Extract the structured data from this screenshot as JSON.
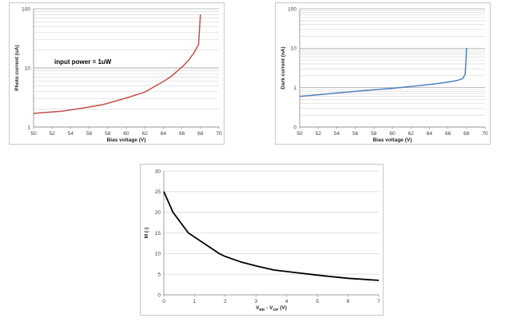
{
  "chart_data": [
    {
      "type": "line",
      "title": "",
      "xlabel": "Bias voltage (V)",
      "ylabel": "Photo current (uA)",
      "xlim": [
        50,
        70
      ],
      "ylim": [
        1,
        100
      ],
      "y_scale": "log",
      "x_ticks": [
        50,
        52,
        54,
        56,
        58,
        60,
        62,
        64,
        66,
        68,
        70
      ],
      "y_ticks": [
        1,
        10,
        100
      ],
      "grid": "y-minor",
      "annotation": "input power = 1uW",
      "series": [
        {
          "color": "#c0504d",
          "x": [
            50,
            51,
            53,
            55,
            57.5,
            60,
            62,
            63,
            64,
            64.8,
            65.5,
            66.2,
            66.8,
            67.3,
            67.8,
            68.0
          ],
          "y": [
            1.7,
            1.75,
            1.85,
            2.05,
            2.4,
            3.1,
            3.9,
            4.8,
            5.9,
            7.1,
            8.8,
            11,
            14,
            18,
            25,
            80
          ]
        }
      ]
    },
    {
      "type": "line",
      "title": "",
      "xlabel": "Bias voltage (V)",
      "ylabel": "Dark current (nA)",
      "xlim": [
        50,
        70
      ],
      "ylim": [
        0,
        100
      ],
      "y_scale": "log",
      "x_ticks": [
        50,
        52,
        54,
        56,
        58,
        60,
        62,
        64,
        66,
        68,
        70
      ],
      "y_ticks": [
        0,
        1,
        10,
        100
      ],
      "grid": "y-minor",
      "series": [
        {
          "color": "#4f81bd",
          "x": [
            50,
            52,
            54,
            56,
            58,
            60,
            62,
            64,
            65,
            66,
            67,
            67.6,
            67.85,
            67.95,
            68.0
          ],
          "y": [
            0.6,
            0.66,
            0.73,
            0.8,
            0.88,
            0.96,
            1.07,
            1.2,
            1.28,
            1.38,
            1.52,
            1.7,
            2.2,
            5,
            10
          ]
        }
      ]
    },
    {
      "type": "line",
      "title": "",
      "xlabel_main": "V",
      "xlabel_sub1": "BR",
      "xlabel_mid": " - V",
      "xlabel_sub2": "OP",
      "xlabel_unit": " (V)",
      "ylabel": "M (-)",
      "xlim": [
        0,
        7
      ],
      "ylim": [
        0,
        30
      ],
      "x_ticks": [
        0,
        1,
        2,
        3,
        4,
        5,
        6,
        7
      ],
      "y_ticks": [
        0,
        5,
        10,
        15,
        20,
        25,
        30
      ],
      "grid": "y-major",
      "series": [
        {
          "color": "#000000",
          "x": [
            0,
            0.3,
            0.8,
            1.3,
            1.8,
            2.0,
            2.5,
            3.0,
            3.6,
            4.4,
            5.2,
            6.0,
            7.0
          ],
          "y": [
            25,
            20,
            15,
            12.5,
            10,
            9.3,
            8.0,
            7.0,
            6.0,
            5.3,
            4.6,
            4.0,
            3.5
          ]
        }
      ]
    }
  ]
}
